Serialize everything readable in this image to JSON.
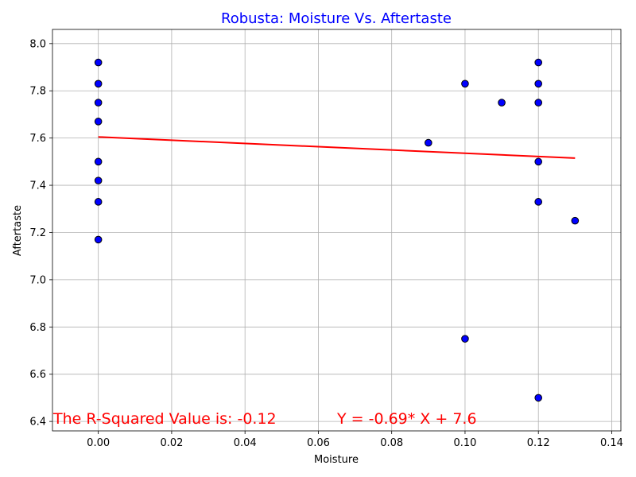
{
  "chart_data": {
    "type": "scatter",
    "title": "Robusta: Moisture Vs. Aftertaste",
    "xlabel": "Moisture",
    "ylabel": "Aftertaste",
    "xlim": [
      -0.0125,
      0.1425
    ],
    "ylim": [
      6.36,
      8.06
    ],
    "xticks": [
      0.0,
      0.02,
      0.04,
      0.06,
      0.08,
      0.1,
      0.12,
      0.14
    ],
    "xtick_labels": [
      "0.00",
      "0.02",
      "0.04",
      "0.06",
      "0.08",
      "0.10",
      "0.12",
      "0.14"
    ],
    "yticks": [
      6.4,
      6.6,
      6.8,
      7.0,
      7.2,
      7.4,
      7.6,
      7.8,
      8.0
    ],
    "ytick_labels": [
      "6.4",
      "6.6",
      "6.8",
      "7.0",
      "7.2",
      "7.4",
      "7.6",
      "7.8",
      "8.0"
    ],
    "grid": true,
    "points": [
      {
        "x": 0.0,
        "y": 7.92
      },
      {
        "x": 0.0,
        "y": 7.83
      },
      {
        "x": 0.0,
        "y": 7.75
      },
      {
        "x": 0.0,
        "y": 7.67
      },
      {
        "x": 0.0,
        "y": 7.5
      },
      {
        "x": 0.0,
        "y": 7.42
      },
      {
        "x": 0.0,
        "y": 7.33
      },
      {
        "x": 0.0,
        "y": 7.17
      },
      {
        "x": 0.09,
        "y": 7.58
      },
      {
        "x": 0.1,
        "y": 7.83
      },
      {
        "x": 0.1,
        "y": 6.75
      },
      {
        "x": 0.11,
        "y": 7.75
      },
      {
        "x": 0.12,
        "y": 7.92
      },
      {
        "x": 0.12,
        "y": 7.83
      },
      {
        "x": 0.12,
        "y": 7.75
      },
      {
        "x": 0.12,
        "y": 7.5
      },
      {
        "x": 0.12,
        "y": 7.33
      },
      {
        "x": 0.12,
        "y": 6.5
      },
      {
        "x": 0.13,
        "y": 7.25
      }
    ],
    "regression": {
      "slope": -0.69,
      "intercept": 7.6047,
      "x_range": [
        0.0,
        0.13
      ]
    },
    "annotations": {
      "r_squared": "The R-Squared Value is: -0.12",
      "equation": "Y = -0.69* X + 7.6"
    },
    "colors": {
      "marker_fill": "#0000ff",
      "marker_edge": "#000000",
      "regression_line": "#ff0000",
      "title": "#0000ff",
      "annotation": "#ff0000",
      "grid": "#b0b0b0"
    }
  }
}
